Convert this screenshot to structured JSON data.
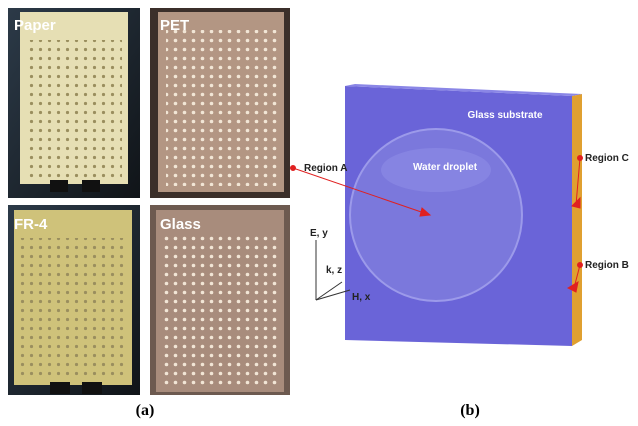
{
  "panel_a": {
    "label": "(a)",
    "photos": [
      "Paper",
      "PET",
      "FR-4",
      "Glass"
    ]
  },
  "panel_b": {
    "label": "(b)",
    "substrate": "Glass substrate",
    "droplet": "Water droplet",
    "regions": [
      "Region A",
      "Region C",
      "Region B"
    ],
    "axes": [
      "E, y",
      "k, z",
      "H, x"
    ]
  }
}
